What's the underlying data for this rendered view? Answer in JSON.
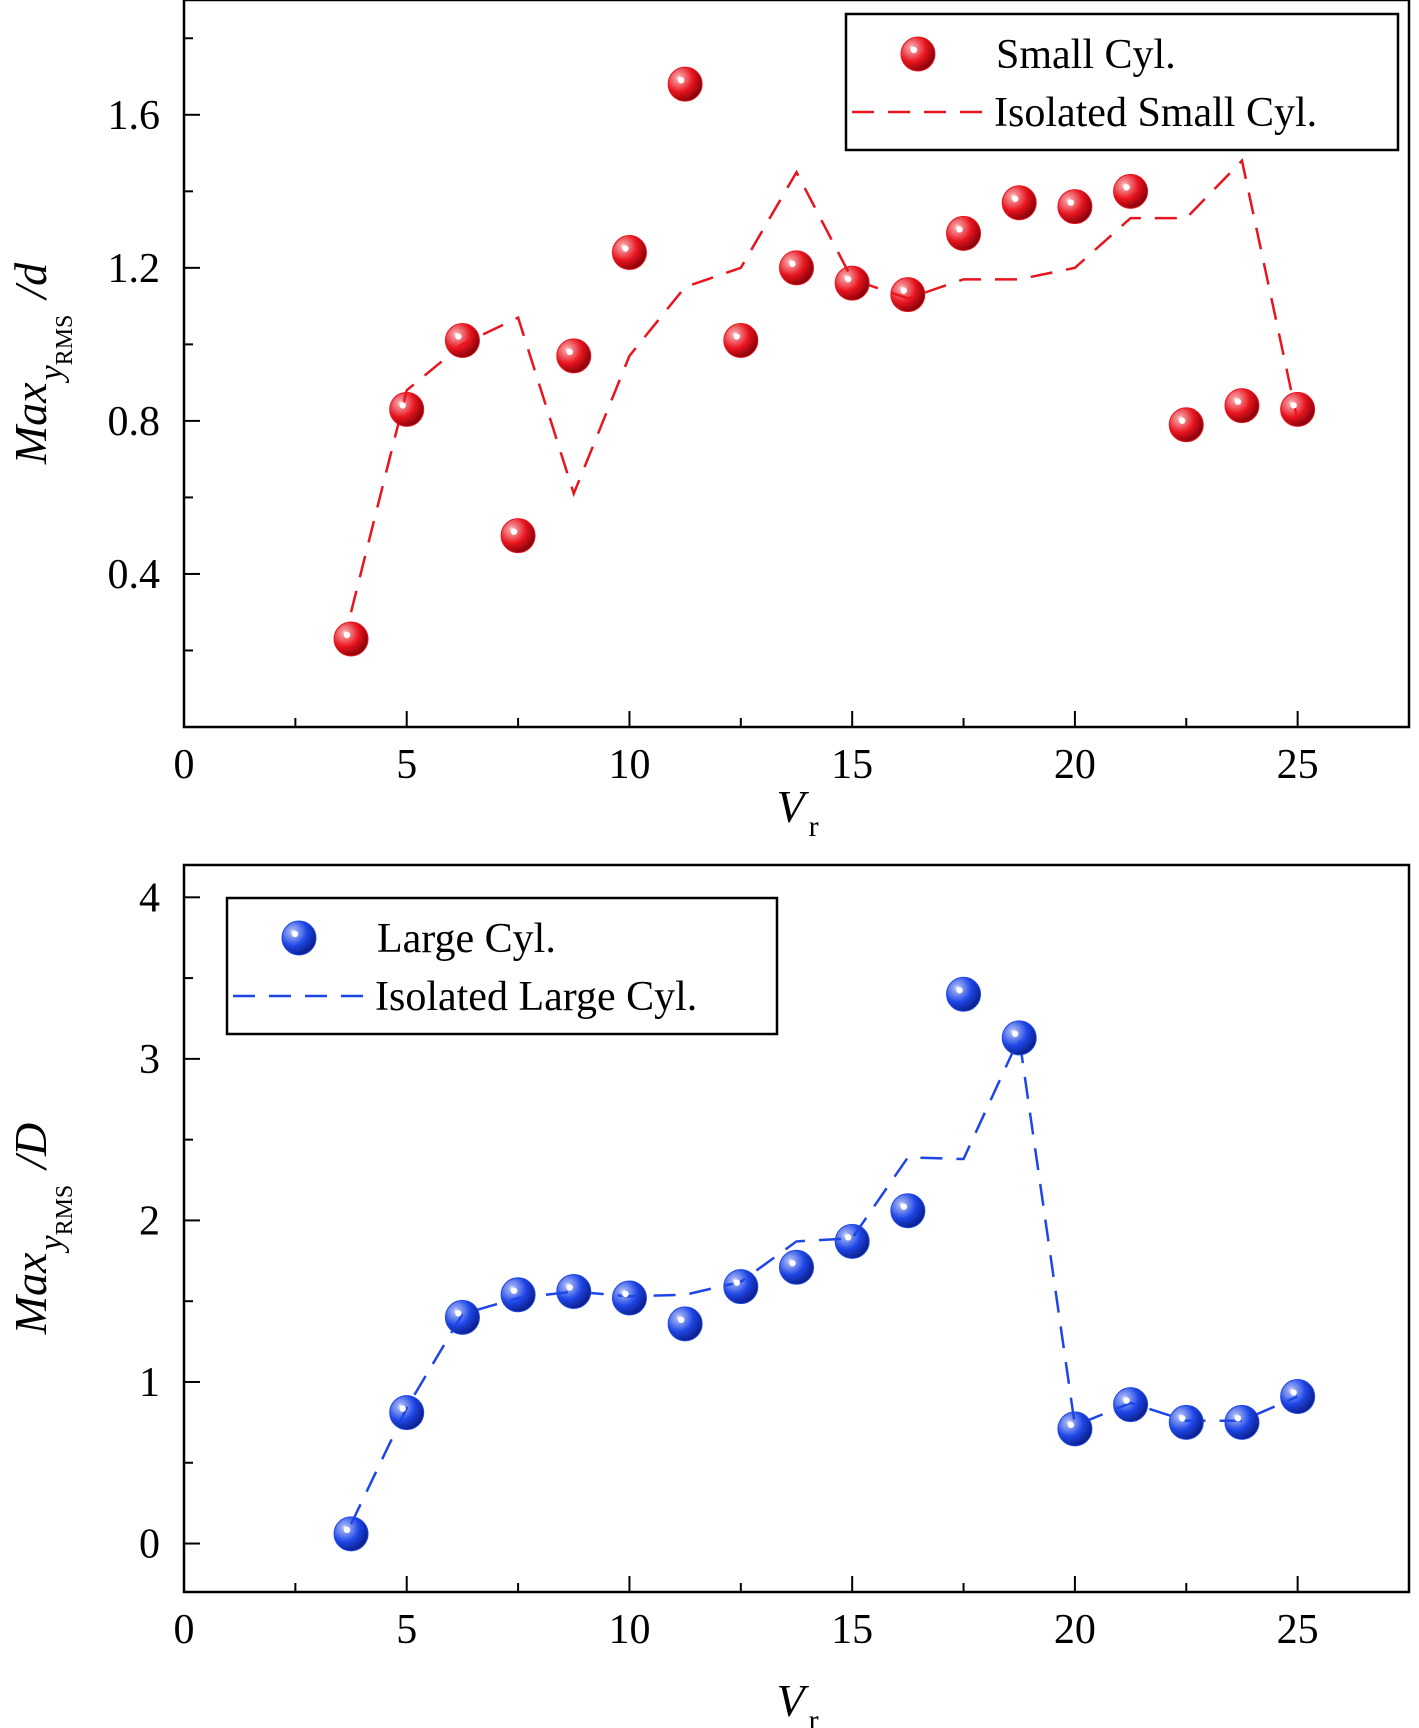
{
  "chart_data": [
    {
      "type": "scatter",
      "xlabel": {
        "main": "V",
        "sub": "r"
      },
      "ylabel": {
        "prefix": "Max",
        "italic_var": "y",
        "sub": "RMS",
        "suffix": "/d"
      },
      "xlim": [
        0,
        27.5
      ],
      "ylim": [
        0,
        1.9
      ],
      "xticks": [
        0,
        5,
        10,
        15,
        20,
        25
      ],
      "xtick_labels": [
        "0",
        "5",
        "10",
        "15",
        "20",
        "25"
      ],
      "yticks": [
        0.4,
        0.8,
        1.2,
        1.6
      ],
      "ytick_labels": [
        "0.4",
        "0.8",
        "1.2",
        "1.6"
      ],
      "legend_position": "top-right",
      "grid": false,
      "series": [
        {
          "name": "Small Cyl.",
          "style": "sphere-markers",
          "color": "#e8141e",
          "x": [
            3.75,
            5.0,
            6.25,
            7.5,
            8.75,
            10.0,
            11.25,
            12.5,
            13.75,
            15.0,
            16.25,
            17.5,
            18.75,
            20.0,
            21.25,
            22.5,
            23.75,
            25.0
          ],
          "y": [
            0.23,
            0.83,
            1.01,
            0.5,
            0.97,
            1.24,
            1.68,
            1.01,
            1.2,
            1.16,
            1.13,
            1.29,
            1.37,
            1.36,
            1.4,
            0.79,
            0.84,
            0.83
          ]
        },
        {
          "name": "Isolated Small Cyl.",
          "style": "dashed-line",
          "color": "#e8141e",
          "x": [
            3.75,
            5.0,
            6.25,
            7.5,
            8.75,
            10.0,
            11.25,
            12.5,
            13.75,
            15.0,
            16.25,
            17.5,
            18.75,
            20.0,
            21.25,
            22.5,
            23.75,
            25.0
          ],
          "y": [
            0.3,
            0.88,
            1.0,
            1.07,
            0.61,
            0.97,
            1.15,
            1.2,
            1.45,
            1.17,
            1.12,
            1.17,
            1.17,
            1.2,
            1.33,
            1.33,
            1.48,
            0.8
          ]
        }
      ]
    },
    {
      "type": "scatter",
      "xlabel": {
        "main": "V",
        "sub": "r"
      },
      "ylabel": {
        "prefix": "Max",
        "italic_var": "y",
        "sub": "RMS",
        "suffix": "/D"
      },
      "xlim": [
        0,
        27.5
      ],
      "ylim": [
        -0.3,
        4.2
      ],
      "xticks": [
        0,
        5,
        10,
        15,
        20,
        25
      ],
      "xtick_labels": [
        "0",
        "5",
        "10",
        "15",
        "20",
        "25"
      ],
      "yticks": [
        0,
        1,
        2,
        3,
        4
      ],
      "ytick_labels": [
        "0",
        "1",
        "2",
        "3",
        "4"
      ],
      "legend_position": "top-left",
      "grid": false,
      "series": [
        {
          "name": "Large Cyl.",
          "style": "sphere-markers",
          "color": "#1e46e6",
          "x": [
            3.75,
            5.0,
            6.25,
            7.5,
            8.75,
            10.0,
            11.25,
            12.5,
            13.75,
            15.0,
            16.25,
            17.5,
            18.75,
            20.0,
            21.25,
            22.5,
            23.75,
            25.0
          ],
          "y": [
            0.06,
            0.81,
            1.4,
            1.54,
            1.56,
            1.52,
            1.36,
            1.59,
            1.71,
            1.87,
            2.06,
            3.4,
            3.13,
            0.71,
            0.86,
            0.75,
            0.75,
            0.91
          ]
        },
        {
          "name": "Isolated Large Cyl.",
          "style": "dashed-line",
          "color": "#1e46e6",
          "x": [
            3.75,
            5.0,
            6.25,
            7.5,
            8.75,
            10.0,
            11.25,
            12.5,
            13.75,
            15.0,
            16.25,
            17.5,
            18.75,
            20.0,
            21.25,
            22.5,
            23.75,
            25.0
          ],
          "y": [
            0.12,
            0.84,
            1.42,
            1.52,
            1.56,
            1.53,
            1.54,
            1.62,
            1.87,
            1.89,
            2.39,
            2.38,
            3.13,
            0.73,
            0.87,
            0.76,
            0.76,
            0.91
          ]
        }
      ]
    }
  ]
}
